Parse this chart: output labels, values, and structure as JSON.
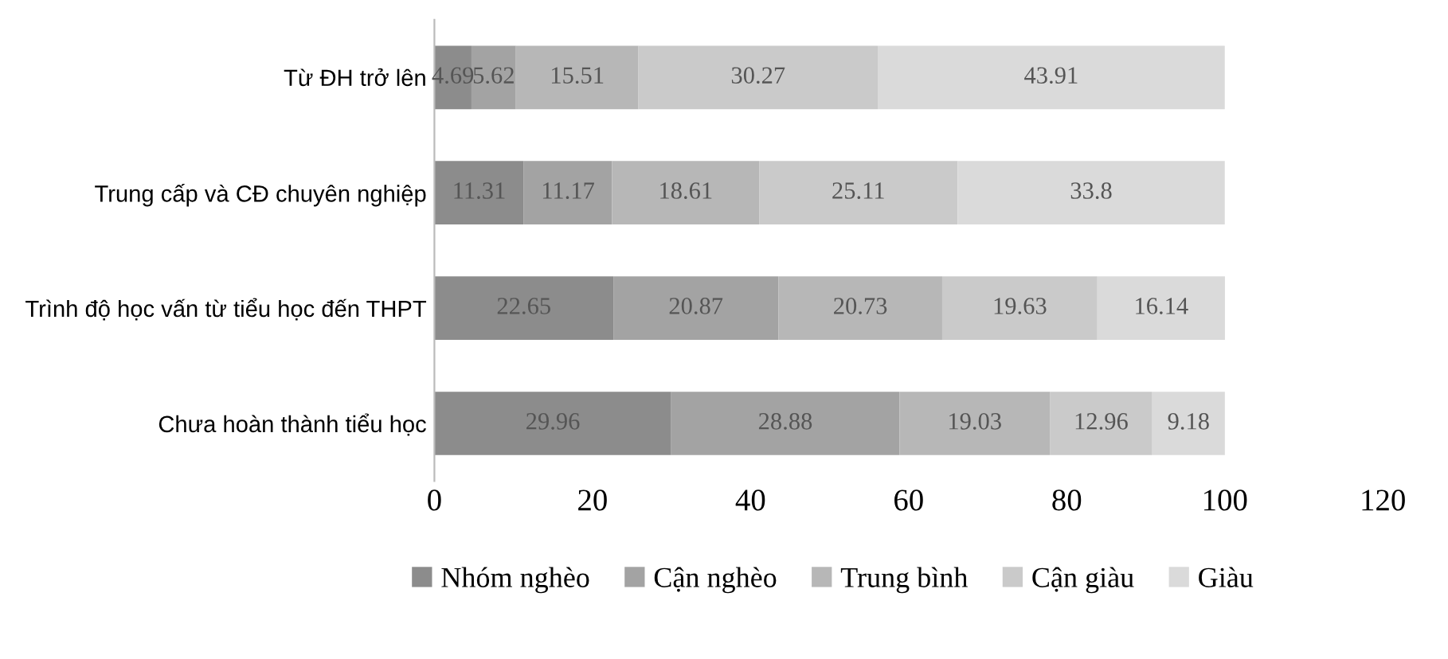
{
  "chart_data": {
    "type": "bar",
    "orientation": "horizontal",
    "stacked": true,
    "categories": [
      "Từ ĐH trở lên",
      "Trung cấp và CĐ chuyên nghiệp",
      "Trình độ học vấn từ tiểu học đến THPT",
      "Chưa hoàn thành tiểu học"
    ],
    "series": [
      {
        "name": "Nhóm nghèo",
        "color": "#8c8c8c",
        "values": [
          4.69,
          11.31,
          22.65,
          29.96
        ]
      },
      {
        "name": "Cận nghèo",
        "color": "#a3a3a3",
        "values": [
          5.62,
          11.17,
          20.87,
          28.88
        ]
      },
      {
        "name": "Trung bình",
        "color": "#b7b7b7",
        "values": [
          15.51,
          18.61,
          20.73,
          19.03
        ]
      },
      {
        "name": "Cận giàu",
        "color": "#cacaca",
        "values": [
          30.27,
          25.11,
          19.63,
          12.96
        ]
      },
      {
        "name": "Giàu",
        "color": "#dadada",
        "values": [
          43.91,
          33.8,
          16.14,
          9.18
        ]
      }
    ],
    "xlim": [
      0,
      120
    ],
    "xticks": [
      0,
      20,
      40,
      60,
      80,
      100,
      120
    ],
    "data_labels": true,
    "legend": "bottom",
    "grid": false
  }
}
